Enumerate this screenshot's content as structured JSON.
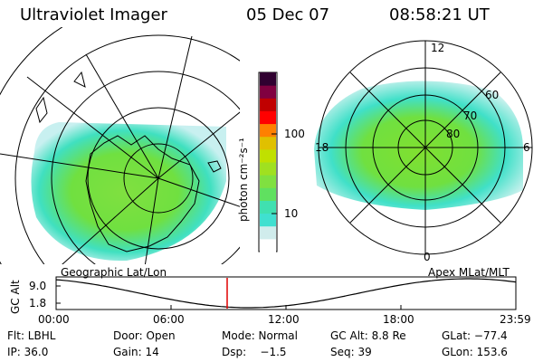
{
  "header": {
    "instrument": "Ultraviolet Imager",
    "date": "05 Dec 07",
    "time": "08:58:21 UT"
  },
  "left_map": {
    "caption": "Geographic Lat/Lon"
  },
  "right_map": {
    "caption": "Apex MLat/MLT",
    "mlt_labels": [
      "12",
      "18",
      "6",
      "0"
    ],
    "mlat_labels": [
      "60",
      "70",
      "80"
    ]
  },
  "colorbar": {
    "label": "photon cm⁻²s⁻¹",
    "ticks": [
      "100",
      "10"
    ],
    "colors": [
      "#ffffff",
      "#d0ecec",
      "#40e0d0",
      "#40e0b0",
      "#60e060",
      "#80e040",
      "#a0e020",
      "#c0e000",
      "#e0c000",
      "#ff8000",
      "#ff0000",
      "#c00000",
      "#800040",
      "#300030"
    ]
  },
  "altitude_plot": {
    "ylabel": "GC Alt",
    "yticks": [
      "9.0",
      "1.8"
    ],
    "xticks": [
      "00:00",
      "06:00",
      "12:00",
      "18:00",
      "23:59"
    ],
    "current_marker": "08:58"
  },
  "status": {
    "row1": {
      "flt": "Flt: LBHL",
      "door": "Door: Open",
      "mode": "Mode: Normal",
      "gcalt": "GC Alt: 8.8 Re",
      "glat": "GLat: −77.4"
    },
    "row2": {
      "ip": "IP: 36.0",
      "gain": "Gain: 14",
      "dsp": "Dsp:    −1.5",
      "seq": "Seq: 39",
      "glon": "GLon: 153.6"
    }
  }
}
